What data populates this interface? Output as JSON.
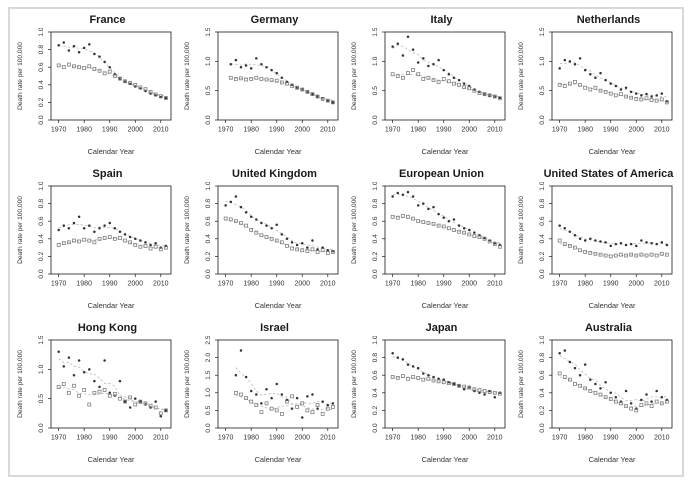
{
  "figure": {
    "background": "#ffffff",
    "border_color": "#d9d9d9"
  },
  "style": {
    "filled_point_color": "#333333",
    "open_point_color": "#707070",
    "trend_line_color": "#b3b3b3",
    "box_color": "#1a1a1a",
    "tick_label_color": "#333333"
  },
  "axes": {
    "xlabel": "Calendar Year",
    "ylabel": "Death rate per 100,000",
    "x_ticks": [
      1970,
      1980,
      1990,
      2000,
      2010
    ],
    "x_range": [
      1967,
      2014
    ],
    "years": [
      1970,
      1972,
      1974,
      1976,
      1978,
      1980,
      1982,
      1984,
      1986,
      1988,
      1990,
      1992,
      1994,
      1996,
      1998,
      2000,
      2002,
      2004,
      2006,
      2008,
      2010,
      2012
    ]
  },
  "chart_data": [
    {
      "type": "scatter",
      "title": "France",
      "ylim": [
        0,
        1.0
      ],
      "y_ticks": [
        0,
        0.2,
        0.4,
        0.6,
        0.8,
        1.0
      ],
      "series": [
        {
          "name": "filled-points",
          "values": [
            0.85,
            0.88,
            0.79,
            0.84,
            0.77,
            0.82,
            0.86,
            0.75,
            0.72,
            0.66,
            0.6,
            0.52,
            0.47,
            0.44,
            0.41,
            0.38,
            0.36,
            0.33,
            0.3,
            0.28,
            0.26,
            0.25
          ]
        },
        {
          "name": "open-points",
          "values": [
            0.62,
            0.6,
            0.63,
            0.61,
            0.6,
            0.59,
            0.61,
            0.58,
            0.56,
            0.53,
            0.55,
            0.5,
            0.47,
            0.44,
            0.42,
            0.4,
            0.37,
            0.35,
            0.32,
            0.29,
            0.27,
            0.25
          ]
        }
      ]
    },
    {
      "type": "scatter",
      "title": "Germany",
      "ylim": [
        0,
        1.5
      ],
      "y_ticks": [
        0,
        0.5,
        1.0,
        1.5
      ],
      "series": [
        {
          "name": "filled-points",
          "values": [
            null,
            0.95,
            1.02,
            0.9,
            0.93,
            0.88,
            1.05,
            0.95,
            0.9,
            0.85,
            0.8,
            0.72,
            0.65,
            0.6,
            0.55,
            0.52,
            0.48,
            0.44,
            0.4,
            0.37,
            0.33,
            0.3
          ]
        },
        {
          "name": "open-points",
          "values": [
            null,
            0.72,
            0.7,
            0.71,
            0.69,
            0.7,
            0.72,
            0.7,
            0.69,
            0.68,
            0.67,
            0.64,
            0.62,
            0.58,
            0.55,
            0.52,
            0.48,
            0.44,
            0.4,
            0.36,
            0.33,
            0.3
          ]
        }
      ]
    },
    {
      "type": "scatter",
      "title": "Italy",
      "ylim": [
        0,
        1.5
      ],
      "y_ticks": [
        0,
        0.5,
        1.0,
        1.5
      ],
      "series": [
        {
          "name": "filled-points",
          "values": [
            1.25,
            1.3,
            1.1,
            1.42,
            1.2,
            0.98,
            1.05,
            0.92,
            0.95,
            1.02,
            0.85,
            0.78,
            0.72,
            0.68,
            0.62,
            0.58,
            0.52,
            0.48,
            0.44,
            0.42,
            0.4,
            0.38
          ]
        },
        {
          "name": "open-points",
          "values": [
            0.78,
            0.75,
            0.72,
            0.8,
            0.85,
            0.78,
            0.7,
            0.72,
            0.68,
            0.65,
            0.7,
            0.66,
            0.62,
            0.6,
            0.56,
            0.54,
            0.5,
            0.46,
            0.44,
            0.42,
            0.4,
            0.37
          ]
        }
      ]
    },
    {
      "type": "scatter",
      "title": "Netherlands",
      "ylim": [
        0,
        1.5
      ],
      "y_ticks": [
        0,
        0.5,
        1.0,
        1.5
      ],
      "series": [
        {
          "name": "filled-points",
          "values": [
            0.88,
            1.02,
            1.0,
            0.95,
            1.05,
            0.85,
            0.78,
            0.72,
            0.8,
            0.68,
            0.62,
            0.58,
            0.52,
            0.55,
            0.48,
            0.45,
            0.42,
            0.44,
            0.4,
            0.42,
            0.45,
            0.32
          ]
        },
        {
          "name": "open-points",
          "values": [
            0.6,
            0.58,
            0.62,
            0.65,
            0.6,
            0.55,
            0.52,
            0.55,
            0.5,
            0.48,
            0.45,
            0.42,
            0.44,
            0.4,
            0.38,
            0.36,
            0.35,
            0.37,
            0.34,
            0.33,
            0.35,
            0.3
          ]
        }
      ]
    },
    {
      "type": "scatter",
      "title": "Spain",
      "ylim": [
        0,
        1.0
      ],
      "y_ticks": [
        0,
        0.2,
        0.4,
        0.6,
        0.8,
        1.0
      ],
      "series": [
        {
          "name": "filled-points",
          "values": [
            0.5,
            0.55,
            0.52,
            0.58,
            0.65,
            0.52,
            0.55,
            0.48,
            0.52,
            0.55,
            0.58,
            0.52,
            0.48,
            0.45,
            0.42,
            0.4,
            0.38,
            0.36,
            0.33,
            0.35,
            0.3,
            0.32
          ]
        },
        {
          "name": "open-points",
          "values": [
            0.33,
            0.35,
            0.36,
            0.38,
            0.37,
            0.39,
            0.38,
            0.36,
            0.4,
            0.41,
            0.42,
            0.4,
            0.41,
            0.38,
            0.36,
            0.33,
            0.31,
            0.32,
            0.29,
            0.31,
            0.28,
            0.3
          ]
        }
      ]
    },
    {
      "type": "scatter",
      "title": "United Kingdom",
      "ylim": [
        0,
        1.0
      ],
      "y_ticks": [
        0,
        0.2,
        0.4,
        0.6,
        0.8,
        1.0
      ],
      "series": [
        {
          "name": "filled-points",
          "values": [
            0.78,
            0.82,
            0.88,
            0.76,
            0.7,
            0.65,
            0.62,
            0.58,
            0.55,
            0.52,
            0.56,
            0.45,
            0.4,
            0.36,
            0.33,
            0.35,
            0.3,
            0.38,
            0.28,
            0.3,
            0.27,
            0.26
          ]
        },
        {
          "name": "open-points",
          "values": [
            0.63,
            0.62,
            0.6,
            0.58,
            0.55,
            0.5,
            0.47,
            0.44,
            0.42,
            0.4,
            0.38,
            0.36,
            0.32,
            0.29,
            0.28,
            0.27,
            0.26,
            0.28,
            0.25,
            0.27,
            0.24,
            0.25
          ]
        }
      ]
    },
    {
      "type": "scatter",
      "title": "European Union",
      "ylim": [
        0,
        1.0
      ],
      "y_ticks": [
        0,
        0.2,
        0.4,
        0.6,
        0.8,
        1.0
      ],
      "series": [
        {
          "name": "filled-points",
          "values": [
            0.88,
            0.92,
            0.9,
            0.93,
            0.88,
            0.78,
            0.8,
            0.74,
            0.76,
            0.68,
            0.64,
            0.6,
            0.62,
            0.55,
            0.52,
            0.5,
            0.47,
            0.44,
            0.41,
            0.38,
            0.35,
            0.33
          ]
        },
        {
          "name": "open-points",
          "values": [
            0.65,
            0.64,
            0.66,
            0.65,
            0.63,
            0.6,
            0.59,
            0.58,
            0.57,
            0.55,
            0.54,
            0.52,
            0.5,
            0.48,
            0.47,
            0.45,
            0.43,
            0.42,
            0.4,
            0.37,
            0.34,
            0.31
          ]
        }
      ]
    },
    {
      "type": "scatter",
      "title": "United States of America",
      "ylim": [
        0,
        1.0
      ],
      "y_ticks": [
        0,
        0.2,
        0.4,
        0.6,
        0.8,
        1.0
      ],
      "series": [
        {
          "name": "filled-points",
          "values": [
            0.55,
            0.52,
            0.48,
            0.44,
            0.4,
            0.38,
            0.4,
            0.38,
            0.37,
            0.36,
            0.32,
            0.34,
            0.35,
            0.33,
            0.34,
            0.32,
            0.38,
            0.36,
            0.35,
            0.34,
            0.36,
            0.33
          ]
        },
        {
          "name": "open-points",
          "values": [
            0.38,
            0.34,
            0.32,
            0.3,
            0.27,
            0.25,
            0.24,
            0.23,
            0.22,
            0.21,
            0.2,
            0.21,
            0.22,
            0.21,
            0.22,
            0.21,
            0.22,
            0.21,
            0.22,
            0.21,
            0.23,
            0.22
          ]
        }
      ]
    },
    {
      "type": "scatter",
      "title": "Hong Kong",
      "ylim": [
        0,
        1.5
      ],
      "y_ticks": [
        0,
        0.5,
        1.0,
        1.5
      ],
      "series": [
        {
          "name": "filled-points",
          "values": [
            1.3,
            1.05,
            1.2,
            0.9,
            1.15,
            0.95,
            1.0,
            0.8,
            0.7,
            1.15,
            0.6,
            0.55,
            0.8,
            0.45,
            0.35,
            0.5,
            0.45,
            0.4,
            0.35,
            0.45,
            0.2,
            0.3
          ]
        },
        {
          "name": "open-points",
          "values": [
            0.7,
            0.75,
            0.6,
            0.72,
            0.55,
            0.65,
            0.4,
            0.6,
            0.62,
            0.65,
            0.55,
            0.58,
            0.5,
            0.45,
            0.52,
            0.4,
            0.45,
            0.42,
            0.38,
            0.35,
            0.25,
            0.3
          ]
        }
      ]
    },
    {
      "type": "scatter",
      "title": "Israel",
      "ylim": [
        0,
        2.5
      ],
      "y_ticks": [
        0,
        0.5,
        1.0,
        1.5,
        2.0,
        2.5
      ],
      "series": [
        {
          "name": "filled-points",
          "values": [
            null,
            null,
            1.5,
            2.2,
            1.45,
            1.05,
            0.95,
            0.7,
            1.1,
            0.85,
            1.25,
            0.95,
            0.8,
            0.55,
            0.85,
            0.3,
            0.9,
            0.95,
            0.55,
            0.75,
            0.65,
            0.7
          ]
        },
        {
          "name": "open-points",
          "values": [
            null,
            null,
            1.0,
            0.95,
            0.85,
            0.75,
            0.65,
            0.45,
            0.7,
            0.55,
            0.5,
            0.4,
            0.75,
            0.9,
            0.6,
            0.7,
            0.5,
            0.45,
            0.65,
            0.4,
            0.55,
            0.6
          ]
        }
      ]
    },
    {
      "type": "scatter",
      "title": "Japan",
      "ylim": [
        0,
        1.0
      ],
      "y_ticks": [
        0,
        0.2,
        0.4,
        0.6,
        0.8,
        1.0
      ],
      "series": [
        {
          "name": "filled-points",
          "values": [
            0.85,
            0.8,
            0.78,
            0.72,
            0.7,
            0.68,
            0.62,
            0.6,
            0.58,
            0.56,
            0.55,
            0.52,
            0.5,
            0.48,
            0.44,
            0.46,
            0.42,
            0.4,
            0.38,
            0.42,
            0.35,
            0.4
          ]
        },
        {
          "name": "open-points",
          "values": [
            0.58,
            0.57,
            0.59,
            0.56,
            0.58,
            0.57,
            0.55,
            0.56,
            0.54,
            0.53,
            0.52,
            0.51,
            0.5,
            0.48,
            0.47,
            0.46,
            0.44,
            0.43,
            0.42,
            0.41,
            0.4,
            0.39
          ]
        }
      ]
    },
    {
      "type": "scatter",
      "title": "Australia",
      "ylim": [
        0,
        1.0
      ],
      "y_ticks": [
        0,
        0.2,
        0.4,
        0.6,
        0.8,
        1.0
      ],
      "series": [
        {
          "name": "filled-points",
          "values": [
            0.85,
            0.88,
            0.75,
            0.68,
            0.6,
            0.72,
            0.55,
            0.5,
            0.45,
            0.52,
            0.4,
            0.35,
            0.3,
            0.42,
            0.28,
            0.22,
            0.32,
            0.38,
            0.3,
            0.42,
            0.35,
            0.32
          ]
        },
        {
          "name": "open-points",
          "values": [
            0.62,
            0.58,
            0.55,
            0.5,
            0.48,
            0.45,
            0.42,
            0.4,
            0.38,
            0.35,
            0.33,
            0.3,
            0.28,
            0.25,
            0.22,
            0.2,
            0.26,
            0.28,
            0.25,
            0.3,
            0.28,
            0.3
          ]
        }
      ]
    }
  ]
}
